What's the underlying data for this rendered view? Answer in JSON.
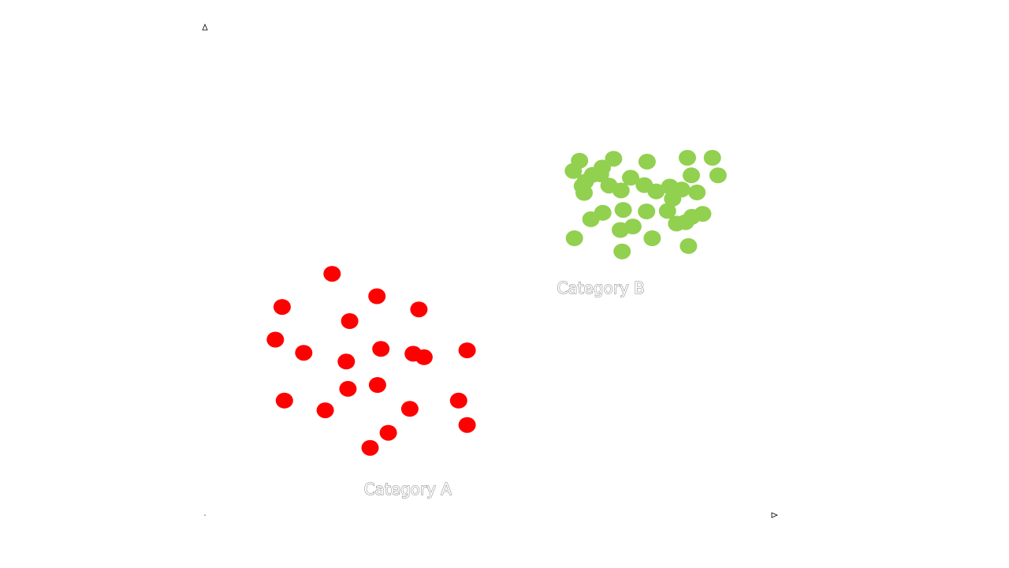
{
  "chart_data": {
    "type": "scatter",
    "title": "",
    "xlabel": "",
    "ylabel": "",
    "grid": false,
    "legend": "none",
    "xlim": [
      0,
      100
    ],
    "ylim": [
      0,
      100
    ],
    "series": [
      {
        "name": "Category A",
        "color": "#ff0000",
        "points": [
          [
            22.4,
            49.5
          ],
          [
            13.6,
            42.7
          ],
          [
            25.5,
            39.8
          ],
          [
            30.3,
            44.9
          ],
          [
            37.7,
            42.2
          ],
          [
            12.4,
            36.0
          ],
          [
            17.4,
            33.3
          ],
          [
            24.9,
            31.5
          ],
          [
            31.0,
            34.1
          ],
          [
            36.7,
            33.1
          ],
          [
            38.6,
            32.4
          ],
          [
            46.2,
            33.8
          ],
          [
            14.0,
            23.5
          ],
          [
            21.2,
            21.5
          ],
          [
            25.2,
            25.9
          ],
          [
            30.4,
            26.7
          ],
          [
            36.1,
            21.8
          ],
          [
            44.7,
            23.5
          ],
          [
            32.3,
            16.9
          ],
          [
            46.2,
            18.5
          ],
          [
            29.1,
            13.8
          ]
        ]
      },
      {
        "name": "Category B",
        "color": "#92d050",
        "points": [
          [
            66.0,
            72.7
          ],
          [
            72.0,
            73.1
          ],
          [
            70.0,
            71.3
          ],
          [
            77.9,
            72.5
          ],
          [
            85.0,
            73.3
          ],
          [
            89.4,
            73.3
          ],
          [
            64.9,
            70.6
          ],
          [
            68.3,
            69.8
          ],
          [
            69.7,
            69.9
          ],
          [
            75.0,
            69.2
          ],
          [
            85.7,
            69.7
          ],
          [
            90.4,
            69.7
          ],
          [
            67.0,
            68.4
          ],
          [
            66.5,
            67.5
          ],
          [
            71.2,
            67.6
          ],
          [
            77.4,
            67.7
          ],
          [
            81.9,
            67.4
          ],
          [
            84.0,
            66.8
          ],
          [
            66.8,
            66.1
          ],
          [
            73.3,
            66.6
          ],
          [
            79.5,
            66.4
          ],
          [
            82.7,
            66.3
          ],
          [
            86.7,
            66.2
          ],
          [
            82.4,
            64.9
          ],
          [
            70.1,
            62.0
          ],
          [
            73.7,
            62.6
          ],
          [
            77.8,
            62.3
          ],
          [
            81.5,
            62.4
          ],
          [
            85.8,
            61.2
          ],
          [
            87.7,
            61.8
          ],
          [
            68.0,
            60.7
          ],
          [
            75.4,
            59.2
          ],
          [
            83.1,
            59.8
          ],
          [
            84.7,
            60.1
          ],
          [
            73.2,
            58.5
          ],
          [
            78.8,
            56.8
          ],
          [
            65.1,
            56.8
          ],
          [
            85.2,
            55.2
          ],
          [
            73.5,
            54.1
          ]
        ]
      }
    ],
    "labels": [
      {
        "text": "Category A",
        "x": 28.0,
        "y": 4.2
      },
      {
        "text": "Category B",
        "x": 62.0,
        "y": 45.5
      }
    ]
  }
}
